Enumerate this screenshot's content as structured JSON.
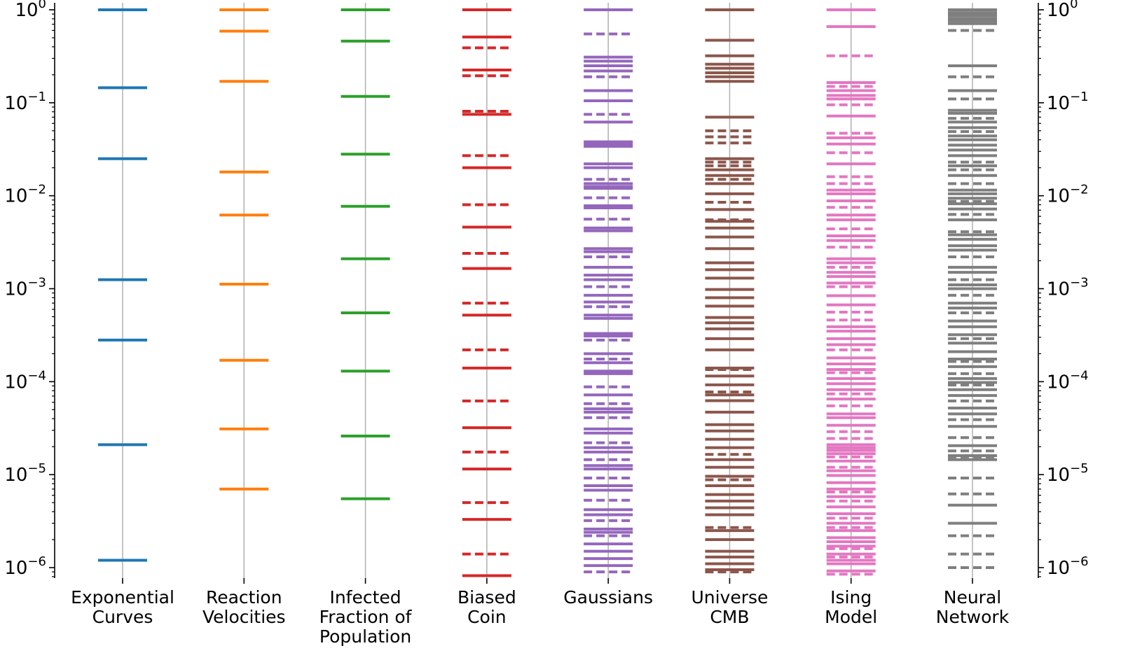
{
  "chart_data": {
    "type": "spectrum",
    "title": "",
    "xlabel": "",
    "ylabel": "",
    "y_scale": "log",
    "ylim": [
      8e-07,
      1.15
    ],
    "y_ticks": [
      {
        "value": 1,
        "base": "10",
        "exp": "0"
      },
      {
        "value": 0.1,
        "base": "10",
        "exp": "−1"
      },
      {
        "value": 0.01,
        "base": "10",
        "exp": "−2"
      },
      {
        "value": 0.001,
        "base": "10",
        "exp": "−3"
      },
      {
        "value": 0.0001,
        "base": "10",
        "exp": "−4"
      },
      {
        "value": 1e-05,
        "base": "10",
        "exp": "−5"
      },
      {
        "value": 1e-06,
        "base": "10",
        "exp": "−6"
      }
    ],
    "axes_right_duplicate": true,
    "grid": false,
    "line_styles": [
      "solid",
      "dashed"
    ],
    "series": [
      {
        "name": "Exponential Curves",
        "label_lines": [
          "Exponential",
          "Curves"
        ],
        "color": "#1f77b4",
        "solid": [
          1.0,
          0.145,
          0.025,
          0.00125,
          0.00028,
          2.1e-05,
          1.2e-06
        ],
        "dashed": []
      },
      {
        "name": "Reaction Velocities",
        "label_lines": [
          "Reaction",
          "Velocities"
        ],
        "color": "#ff7f0e",
        "solid": [
          1.0,
          0.59,
          0.17,
          0.018,
          0.0062,
          0.00112,
          0.00017,
          3.1e-05,
          7e-06
        ],
        "dashed": []
      },
      {
        "name": "Infected Fraction of Population",
        "label_lines": [
          "Infected",
          "Fraction of",
          "Population"
        ],
        "color": "#2ca02c",
        "solid": [
          1.0,
          0.46,
          0.117,
          0.028,
          0.0077,
          0.0021,
          0.00055,
          0.00013,
          2.6e-05,
          5.5e-06
        ],
        "dashed": []
      },
      {
        "name": "Biased Coin",
        "label_lines": [
          "Biased",
          "Coin"
        ],
        "color": "#d62728",
        "solid": [
          1.0,
          0.51,
          0.225,
          0.075,
          0.02,
          0.0046,
          0.00165,
          0.00052,
          0.00014,
          3.2e-05,
          1.15e-05,
          3.3e-06,
          8.2e-07
        ],
        "dashed": [
          0.39,
          0.195,
          0.081,
          0.027,
          0.008,
          0.0024,
          0.0007,
          0.00022,
          6.2e-05,
          1.75e-05,
          5e-06,
          1.4e-06
        ]
      },
      {
        "name": "Gaussians",
        "label_lines": [
          "Gaussians"
        ],
        "color": "#9467bd",
        "solid": [
          1.0,
          0.31,
          0.28,
          0.25,
          0.22,
          0.135,
          0.105,
          0.062,
          0.038,
          0.036,
          0.034,
          0.022,
          0.02,
          0.0135,
          0.0125,
          0.012,
          0.0078,
          0.0074,
          0.0045,
          0.0042,
          0.0027,
          0.0025,
          0.0017,
          0.0014,
          0.00125,
          0.00085,
          0.00072,
          0.00052,
          0.00048,
          0.00033,
          0.00031,
          0.0002,
          0.00016,
          0.00013,
          0.000122,
          7.2e-05,
          5.1e-05,
          4.7e-05,
          3.1e-05,
          2.8e-05,
          1.95e-05,
          1.75e-05,
          1.25e-05,
          1.15e-05,
          7.6e-06,
          6.8e-06,
          4.2e-06,
          3.7e-06,
          2.6e-06,
          2.4e-06,
          1.8e-06,
          1.5e-06,
          1.25e-06,
          1.05e-06
        ],
        "dashed": [
          0.55,
          0.19,
          0.075,
          0.015,
          0.0095,
          0.0056,
          0.0022,
          0.00105,
          0.00064,
          0.00028,
          0.000175,
          8.8e-05,
          5.8e-05,
          4.1e-05,
          2.2e-05,
          1.45e-05,
          9.2e-06,
          5.3e-06,
          3.2e-06,
          2.2e-06,
          9e-07
        ]
      },
      {
        "name": "Universe CMB",
        "label_lines": [
          "Universe",
          "CMB"
        ],
        "color": "#8c564b",
        "solid": [
          1.0,
          0.47,
          0.32,
          0.26,
          0.235,
          0.21,
          0.19,
          0.17,
          0.07,
          0.025,
          0.019,
          0.0165,
          0.0135,
          0.0105,
          0.0071,
          0.0053,
          0.0045,
          0.0036,
          0.0027,
          0.0019,
          0.0016,
          0.0013,
          0.00098,
          0.0008,
          0.00065,
          0.00049,
          0.00043,
          0.00037,
          0.00029,
          0.00022,
          0.00014,
          0.000115,
          9.25e-05,
          7.2e-05,
          6.25e-05,
          4.7e-05,
          3.45e-05,
          2.95e-05,
          2.4e-05,
          1.95e-05,
          1.45e-05,
          1.2e-05,
          9.6e-06,
          7.6e-06,
          6.1e-06,
          5.2e-06,
          4.4e-06,
          3.7e-06,
          2.5e-06,
          2e-06,
          1.5e-06,
          1.3e-06,
          1.1e-06,
          9.5e-07
        ],
        "dashed": [
          0.05,
          0.043,
          0.037,
          0.023,
          0.021,
          0.015,
          0.0085,
          0.0055,
          0.000135,
          7.75e-05,
          1.65e-05,
          8.8e-06,
          2.7e-06,
          9e-07
        ]
      },
      {
        "name": "Ising Model",
        "label_lines": [
          "Ising",
          "Model"
        ],
        "color": "#e377c2",
        "solid": [
          1.0,
          0.66,
          0.165,
          0.135,
          0.12,
          0.11,
          0.072,
          0.042,
          0.036,
          0.022,
          0.0115,
          0.0105,
          0.0088,
          0.0062,
          0.0055,
          0.0037,
          0.0033,
          0.0021,
          0.0019,
          0.0015,
          0.00135,
          0.00115,
          0.00084,
          0.00067,
          0.00039,
          0.00035,
          0.00029,
          0.00025,
          0.00018,
          0.000155,
          0.000135,
          0.000108,
          9.5e-05,
          8.2e-05,
          6.5e-05,
          4.5e-05,
          4.1e-05,
          3.4e-05,
          2.1e-05,
          1.95e-05,
          1.82e-05,
          1.68e-05,
          1.4e-05,
          1.1e-05,
          9.8e-06,
          8.2e-06,
          7e-06,
          5.8e-06,
          4.5e-06,
          3.8e-06,
          3e-06,
          2.5e-06,
          2.1e-06,
          1.9e-06,
          1.7e-06,
          1.4e-06,
          1.2e-06,
          1.1e-06,
          9.2e-07
        ],
        "dashed": [
          0.32,
          0.15,
          0.095,
          0.047,
          0.029,
          0.016,
          0.0135,
          0.0075,
          0.0044,
          0.0028,
          0.0017,
          0.00105,
          0.00056,
          0.00046,
          0.00022,
          0.000125,
          7.4e-05,
          5.5e-05,
          2.9e-05,
          2.45e-05,
          1.55e-05,
          1.2e-05,
          6.5e-06,
          5.2e-06,
          3.4e-06,
          2.7e-06,
          1.6e-06,
          1.3e-06,
          8.5e-07
        ]
      },
      {
        "name": "Neural Network",
        "label_lines": [
          "Neural",
          "Network"
        ],
        "color": "#7f7f7f",
        "solid": [
          1.0,
          0.93,
          0.87,
          0.81,
          0.76,
          0.71,
          0.25,
          0.135,
          0.083,
          0.077,
          0.062,
          0.054,
          0.044,
          0.04,
          0.035,
          0.031,
          0.027,
          0.021,
          0.0165,
          0.0115,
          0.0105,
          0.0094,
          0.0082,
          0.0072,
          0.0055,
          0.0038,
          0.0034,
          0.0029,
          0.0026,
          0.0017,
          0.0015,
          0.0011,
          0.001,
          0.0007,
          0.00062,
          0.00045,
          0.00039,
          0.00032,
          0.00026,
          0.00021,
          0.000175,
          0.000145,
          0.000108,
          9.8e-05,
          8.2e-05,
          7.1e-05,
          5.2e-05,
          4.5e-05,
          3.3e-05,
          2.05e-05,
          1.6e-05,
          1.45e-05,
          4.7e-06,
          3e-06
        ],
        "dashed": [
          0.6,
          0.19,
          0.11,
          0.068,
          0.049,
          0.023,
          0.019,
          0.0135,
          0.0087,
          0.0063,
          0.0041,
          0.0022,
          0.00125,
          0.00085,
          0.00055,
          0.00029,
          0.000165,
          0.000122,
          9.2e-05,
          6.2e-05,
          3.9e-05,
          2.5e-05,
          1.8e-05,
          1.55e-05,
          9.2e-06,
          6.2e-06,
          2.2e-06,
          1.4e-06,
          1e-06
        ]
      }
    ]
  }
}
